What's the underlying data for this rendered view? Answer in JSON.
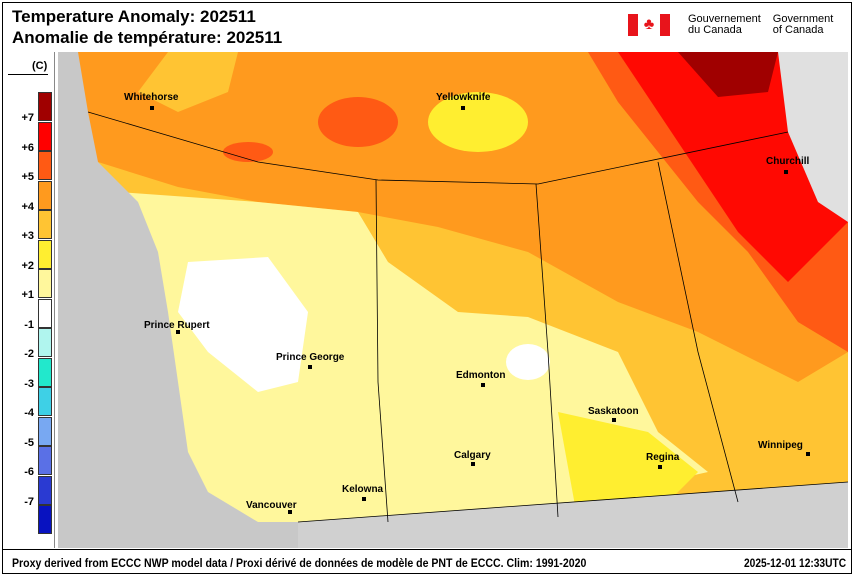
{
  "header": {
    "title_en": "Temperature Anomaly: 202511",
    "title_fr": "Anomalie de température: 202511"
  },
  "government": {
    "fr_line1": "Gouvernement",
    "fr_line2": "du Canada",
    "en_line1": "Government",
    "en_line2": "of Canada",
    "flag_icon": "canada-flag-icon"
  },
  "legend": {
    "unit": "(C)",
    "bins": [
      {
        "label": "+7",
        "color": "#a00000"
      },
      {
        "label": "+6",
        "color": "#ff0000"
      },
      {
        "label": "+5",
        "color": "#ff5a14"
      },
      {
        "label": "+4",
        "color": "#ff9a1e"
      },
      {
        "label": "+3",
        "color": "#ffc433"
      },
      {
        "label": "+2",
        "color": "#ffee30"
      },
      {
        "label": "+1",
        "color": "#fff79c"
      },
      {
        "label": "-1",
        "color": "#ffffff"
      },
      {
        "label": "-2",
        "color": "#b0f5ee"
      },
      {
        "label": "-3",
        "color": "#22e8cc"
      },
      {
        "label": "-4",
        "color": "#3ed0e6"
      },
      {
        "label": "-5",
        "color": "#78a8f2"
      },
      {
        "label": "-6",
        "color": "#5a70e6"
      },
      {
        "label": "-7",
        "color": "#2a3ad2"
      },
      {
        "label": "",
        "color": "#0812c0"
      }
    ]
  },
  "cities": [
    {
      "name": "Whitehorse"
    },
    {
      "name": "Yellowknife"
    },
    {
      "name": "Churchill"
    },
    {
      "name": "Prince Rupert"
    },
    {
      "name": "Prince George"
    },
    {
      "name": "Edmonton"
    },
    {
      "name": "Saskatoon"
    },
    {
      "name": "Calgary"
    },
    {
      "name": "Regina"
    },
    {
      "name": "Winnipeg"
    },
    {
      "name": "Kelowna"
    },
    {
      "name": "Vancouver"
    }
  ],
  "footer": {
    "source": "Proxy derived from ECCC NWP model data / Proxi dérivé de données de modèle de PNT de ECCC. Clim: 1991-2020",
    "timestamp": "2025-12-01 12:33UTC"
  }
}
